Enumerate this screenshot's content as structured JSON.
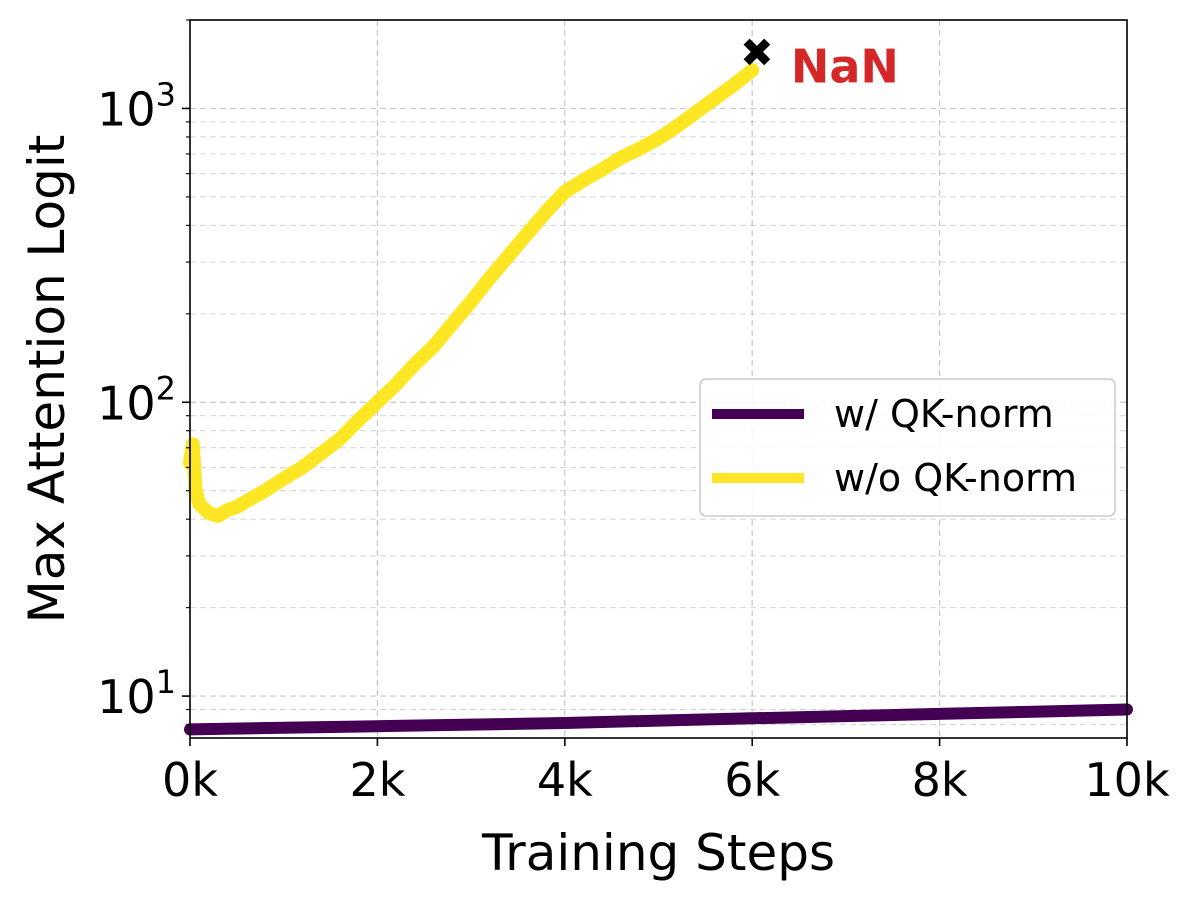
{
  "chart_data": {
    "type": "line",
    "xlabel": "Training Steps",
    "ylabel": "Max Attention Logit",
    "xlim": [
      0,
      10000
    ],
    "ylim": [
      7.2,
      2000
    ],
    "yscale": "log",
    "grid": true,
    "legend_placement": "center-right",
    "x_ticks": [
      {
        "value": 0,
        "label": "0k"
      },
      {
        "value": 2000,
        "label": "2k"
      },
      {
        "value": 4000,
        "label": "4k"
      },
      {
        "value": 6000,
        "label": "6k"
      },
      {
        "value": 8000,
        "label": "8k"
      },
      {
        "value": 10000,
        "label": "10k"
      }
    ],
    "y_ticks": [
      {
        "value": 10,
        "base": "10",
        "exp": "1"
      },
      {
        "value": 100,
        "base": "10",
        "exp": "2"
      },
      {
        "value": 1000,
        "base": "10",
        "exp": "3"
      }
    ],
    "series": [
      {
        "name": "w/ QK-norm",
        "color": "#440154",
        "x": [
          0,
          1000,
          2000,
          3000,
          4000,
          5000,
          6000,
          7000,
          8000,
          9000,
          10000
        ],
        "y": [
          7.7,
          7.8,
          7.9,
          8.0,
          8.1,
          8.25,
          8.4,
          8.55,
          8.7,
          8.85,
          9.0
        ]
      },
      {
        "name": "w/o QK-norm",
        "color": "#fde725",
        "x": [
          0,
          30,
          60,
          100,
          200,
          300,
          400,
          500,
          600,
          800,
          1000,
          1200,
          1400,
          1600,
          1800,
          2000,
          2200,
          2400,
          2600,
          2800,
          3000,
          3200,
          3400,
          3600,
          3800,
          4000,
          4200,
          4400,
          4600,
          4800,
          5000,
          5200,
          5400,
          5600,
          5800,
          6000
        ],
        "y": [
          62,
          72,
          50,
          45,
          42,
          41,
          43,
          44,
          46,
          50,
          55,
          60,
          67,
          75,
          87,
          100,
          115,
          135,
          155,
          185,
          220,
          265,
          315,
          375,
          445,
          520,
          570,
          620,
          680,
          730,
          790,
          870,
          970,
          1080,
          1200,
          1350
        ]
      }
    ],
    "annotation": {
      "label": "NaN",
      "marker": "✖",
      "x": 6050,
      "y": 1550,
      "color": "#d62728"
    }
  }
}
